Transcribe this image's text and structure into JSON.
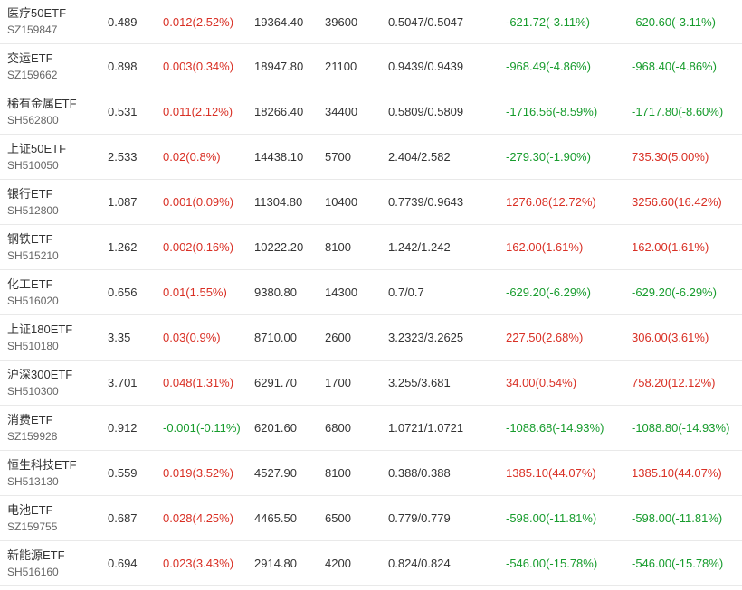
{
  "rows": [
    {
      "name": "医疗50ETF",
      "code": "SZ159847",
      "price": "0.489",
      "change": "0.012(2.52%)",
      "change_dir": "up",
      "amount": "19364.40",
      "volume": "39600",
      "nav": "0.5047/0.5047",
      "net1": "-621.72(-3.11%)",
      "net1_dir": "down",
      "net2": "-620.60(-3.11%)",
      "net2_dir": "down"
    },
    {
      "name": "交运ETF",
      "code": "SZ159662",
      "price": "0.898",
      "change": "0.003(0.34%)",
      "change_dir": "up",
      "amount": "18947.80",
      "volume": "21100",
      "nav": "0.9439/0.9439",
      "net1": "-968.49(-4.86%)",
      "net1_dir": "down",
      "net2": "-968.40(-4.86%)",
      "net2_dir": "down"
    },
    {
      "name": "稀有金属ETF",
      "code": "SH562800",
      "price": "0.531",
      "change": "0.011(2.12%)",
      "change_dir": "up",
      "amount": "18266.40",
      "volume": "34400",
      "nav": "0.5809/0.5809",
      "net1": "-1716.56(-8.59%)",
      "net1_dir": "down",
      "net2": "-1717.80(-8.60%)",
      "net2_dir": "down"
    },
    {
      "name": "上证50ETF",
      "code": "SH510050",
      "price": "2.533",
      "change": "0.02(0.8%)",
      "change_dir": "up",
      "amount": "14438.10",
      "volume": "5700",
      "nav": "2.404/2.582",
      "net1": "-279.30(-1.90%)",
      "net1_dir": "down",
      "net2": "735.30(5.00%)",
      "net2_dir": "up"
    },
    {
      "name": "银行ETF",
      "code": "SH512800",
      "price": "1.087",
      "change": "0.001(0.09%)",
      "change_dir": "up",
      "amount": "11304.80",
      "volume": "10400",
      "nav": "0.7739/0.9643",
      "net1": "1276.08(12.72%)",
      "net1_dir": "up",
      "net2": "3256.60(16.42%)",
      "net2_dir": "up"
    },
    {
      "name": "钢铁ETF",
      "code": "SH515210",
      "price": "1.262",
      "change": "0.002(0.16%)",
      "change_dir": "up",
      "amount": "10222.20",
      "volume": "8100",
      "nav": "1.242/1.242",
      "net1": "162.00(1.61%)",
      "net1_dir": "up",
      "net2": "162.00(1.61%)",
      "net2_dir": "up"
    },
    {
      "name": "化工ETF",
      "code": "SH516020",
      "price": "0.656",
      "change": "0.01(1.55%)",
      "change_dir": "up",
      "amount": "9380.80",
      "volume": "14300",
      "nav": "0.7/0.7",
      "net1": "-629.20(-6.29%)",
      "net1_dir": "down",
      "net2": "-629.20(-6.29%)",
      "net2_dir": "down"
    },
    {
      "name": "上证180ETF",
      "code": "SH510180",
      "price": "3.35",
      "change": "0.03(0.9%)",
      "change_dir": "up",
      "amount": "8710.00",
      "volume": "2600",
      "nav": "3.2323/3.2625",
      "net1": "227.50(2.68%)",
      "net1_dir": "up",
      "net2": "306.00(3.61%)",
      "net2_dir": "up"
    },
    {
      "name": "沪深300ETF",
      "code": "SH510300",
      "price": "3.701",
      "change": "0.048(1.31%)",
      "change_dir": "up",
      "amount": "6291.70",
      "volume": "1700",
      "nav": "3.255/3.681",
      "net1": "34.00(0.54%)",
      "net1_dir": "up",
      "net2": "758.20(12.12%)",
      "net2_dir": "up"
    },
    {
      "name": "消费ETF",
      "code": "SZ159928",
      "price": "0.912",
      "change": "-0.001(-0.11%)",
      "change_dir": "down",
      "amount": "6201.60",
      "volume": "6800",
      "nav": "1.0721/1.0721",
      "net1": "-1088.68(-14.93%)",
      "net1_dir": "down",
      "net2": "-1088.80(-14.93%)",
      "net2_dir": "down"
    },
    {
      "name": "恒生科技ETF",
      "code": "SH513130",
      "price": "0.559",
      "change": "0.019(3.52%)",
      "change_dir": "up",
      "amount": "4527.90",
      "volume": "8100",
      "nav": "0.388/0.388",
      "net1": "1385.10(44.07%)",
      "net1_dir": "up",
      "net2": "1385.10(44.07%)",
      "net2_dir": "up"
    },
    {
      "name": "电池ETF",
      "code": "SZ159755",
      "price": "0.687",
      "change": "0.028(4.25%)",
      "change_dir": "up",
      "amount": "4465.50",
      "volume": "6500",
      "nav": "0.779/0.779",
      "net1": "-598.00(-11.81%)",
      "net1_dir": "down",
      "net2": "-598.00(-11.81%)",
      "net2_dir": "down"
    },
    {
      "name": "新能源ETF",
      "code": "SH516160",
      "price": "0.694",
      "change": "0.023(3.43%)",
      "change_dir": "up",
      "amount": "2914.80",
      "volume": "4200",
      "nav": "0.824/0.824",
      "net1": "-546.00(-15.78%)",
      "net1_dir": "down",
      "net2": "-546.00(-15.78%)",
      "net2_dir": "down"
    }
  ],
  "colors": {
    "up": "#d93025",
    "down": "#179c2d"
  }
}
